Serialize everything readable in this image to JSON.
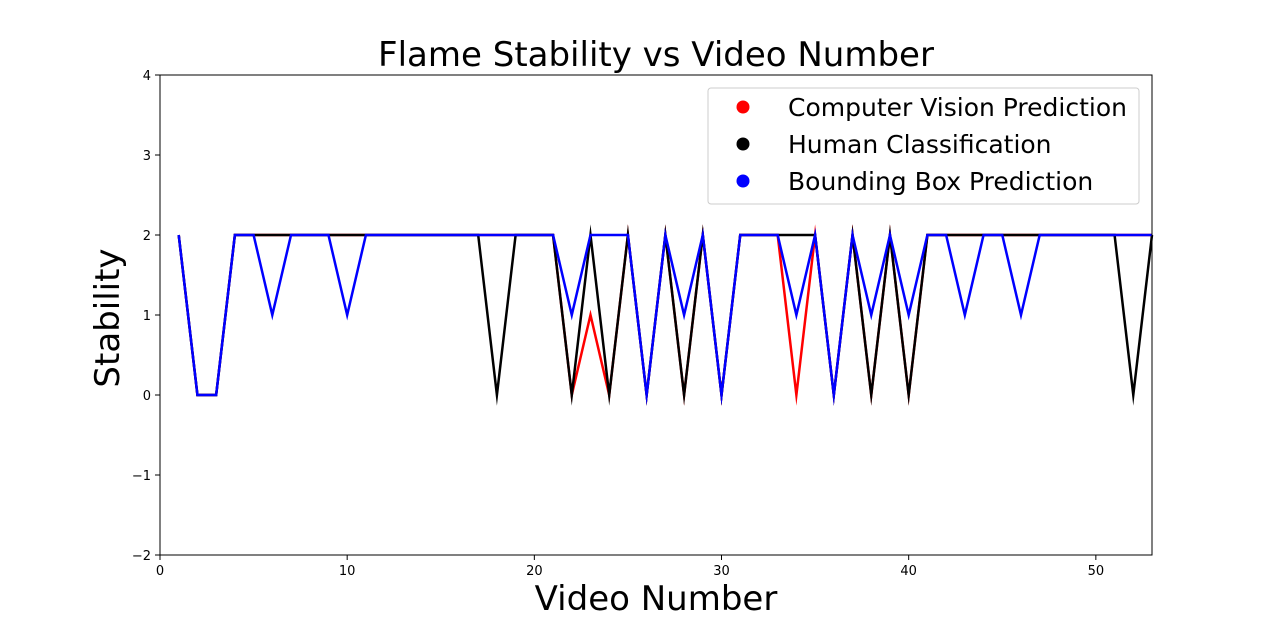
{
  "chart_data": {
    "type": "line",
    "title": "Flame Stability vs Video Number",
    "xlabel": "Video Number",
    "ylabel": "Stability",
    "xlim": [
      0,
      53
    ],
    "ylim": [
      -2,
      4
    ],
    "xticks": [
      0,
      10,
      20,
      30,
      40,
      50
    ],
    "yticks": [
      -2,
      -1,
      0,
      1,
      2,
      3,
      4
    ],
    "grid": false,
    "legend_position": "top-right",
    "x": [
      1,
      2,
      3,
      4,
      5,
      6,
      7,
      8,
      9,
      10,
      11,
      12,
      13,
      14,
      15,
      16,
      17,
      18,
      19,
      20,
      21,
      22,
      23,
      24,
      25,
      26,
      27,
      28,
      29,
      30,
      31,
      32,
      33,
      34,
      35,
      36,
      37,
      38,
      39,
      40,
      41,
      42,
      43,
      44,
      45,
      46,
      47,
      48,
      49,
      50,
      51,
      52,
      53
    ],
    "series": [
      {
        "name": "Computer Vision Prediction",
        "color": "#ff0000",
        "values": [
          2,
          0,
          0,
          2,
          2,
          2,
          2,
          2,
          2,
          2,
          2,
          2,
          2,
          2,
          2,
          2,
          2,
          2,
          2,
          2,
          2,
          0,
          1,
          0,
          2,
          0,
          2,
          0,
          2,
          0,
          2,
          2,
          2,
          0,
          2,
          0,
          2,
          0,
          2,
          0,
          2,
          2,
          2,
          2,
          2,
          2,
          2,
          2,
          2,
          2,
          2,
          2,
          2
        ]
      },
      {
        "name": "Human Classification",
        "color": "#000000",
        "values": [
          2,
          0,
          0,
          2,
          2,
          2,
          2,
          2,
          2,
          2,
          2,
          2,
          2,
          2,
          2,
          2,
          2,
          0,
          2,
          2,
          2,
          0,
          2,
          0,
          2,
          0,
          2,
          0,
          2,
          0,
          2,
          2,
          2,
          2,
          2,
          0,
          2,
          0,
          2,
          0,
          2,
          2,
          2,
          2,
          2,
          2,
          2,
          2,
          2,
          2,
          2,
          0,
          2
        ]
      },
      {
        "name": "Bounding Box Prediction",
        "color": "#0000ff",
        "values": [
          2,
          0,
          0,
          2,
          2,
          1,
          2,
          2,
          2,
          1,
          2,
          2,
          2,
          2,
          2,
          2,
          2,
          2,
          2,
          2,
          2,
          1,
          2,
          2,
          2,
          0,
          2,
          1,
          2,
          0,
          2,
          2,
          2,
          1,
          2,
          0,
          2,
          1,
          2,
          1,
          2,
          2,
          1,
          2,
          2,
          1,
          2,
          2,
          2,
          2,
          2,
          2,
          2
        ]
      }
    ]
  }
}
